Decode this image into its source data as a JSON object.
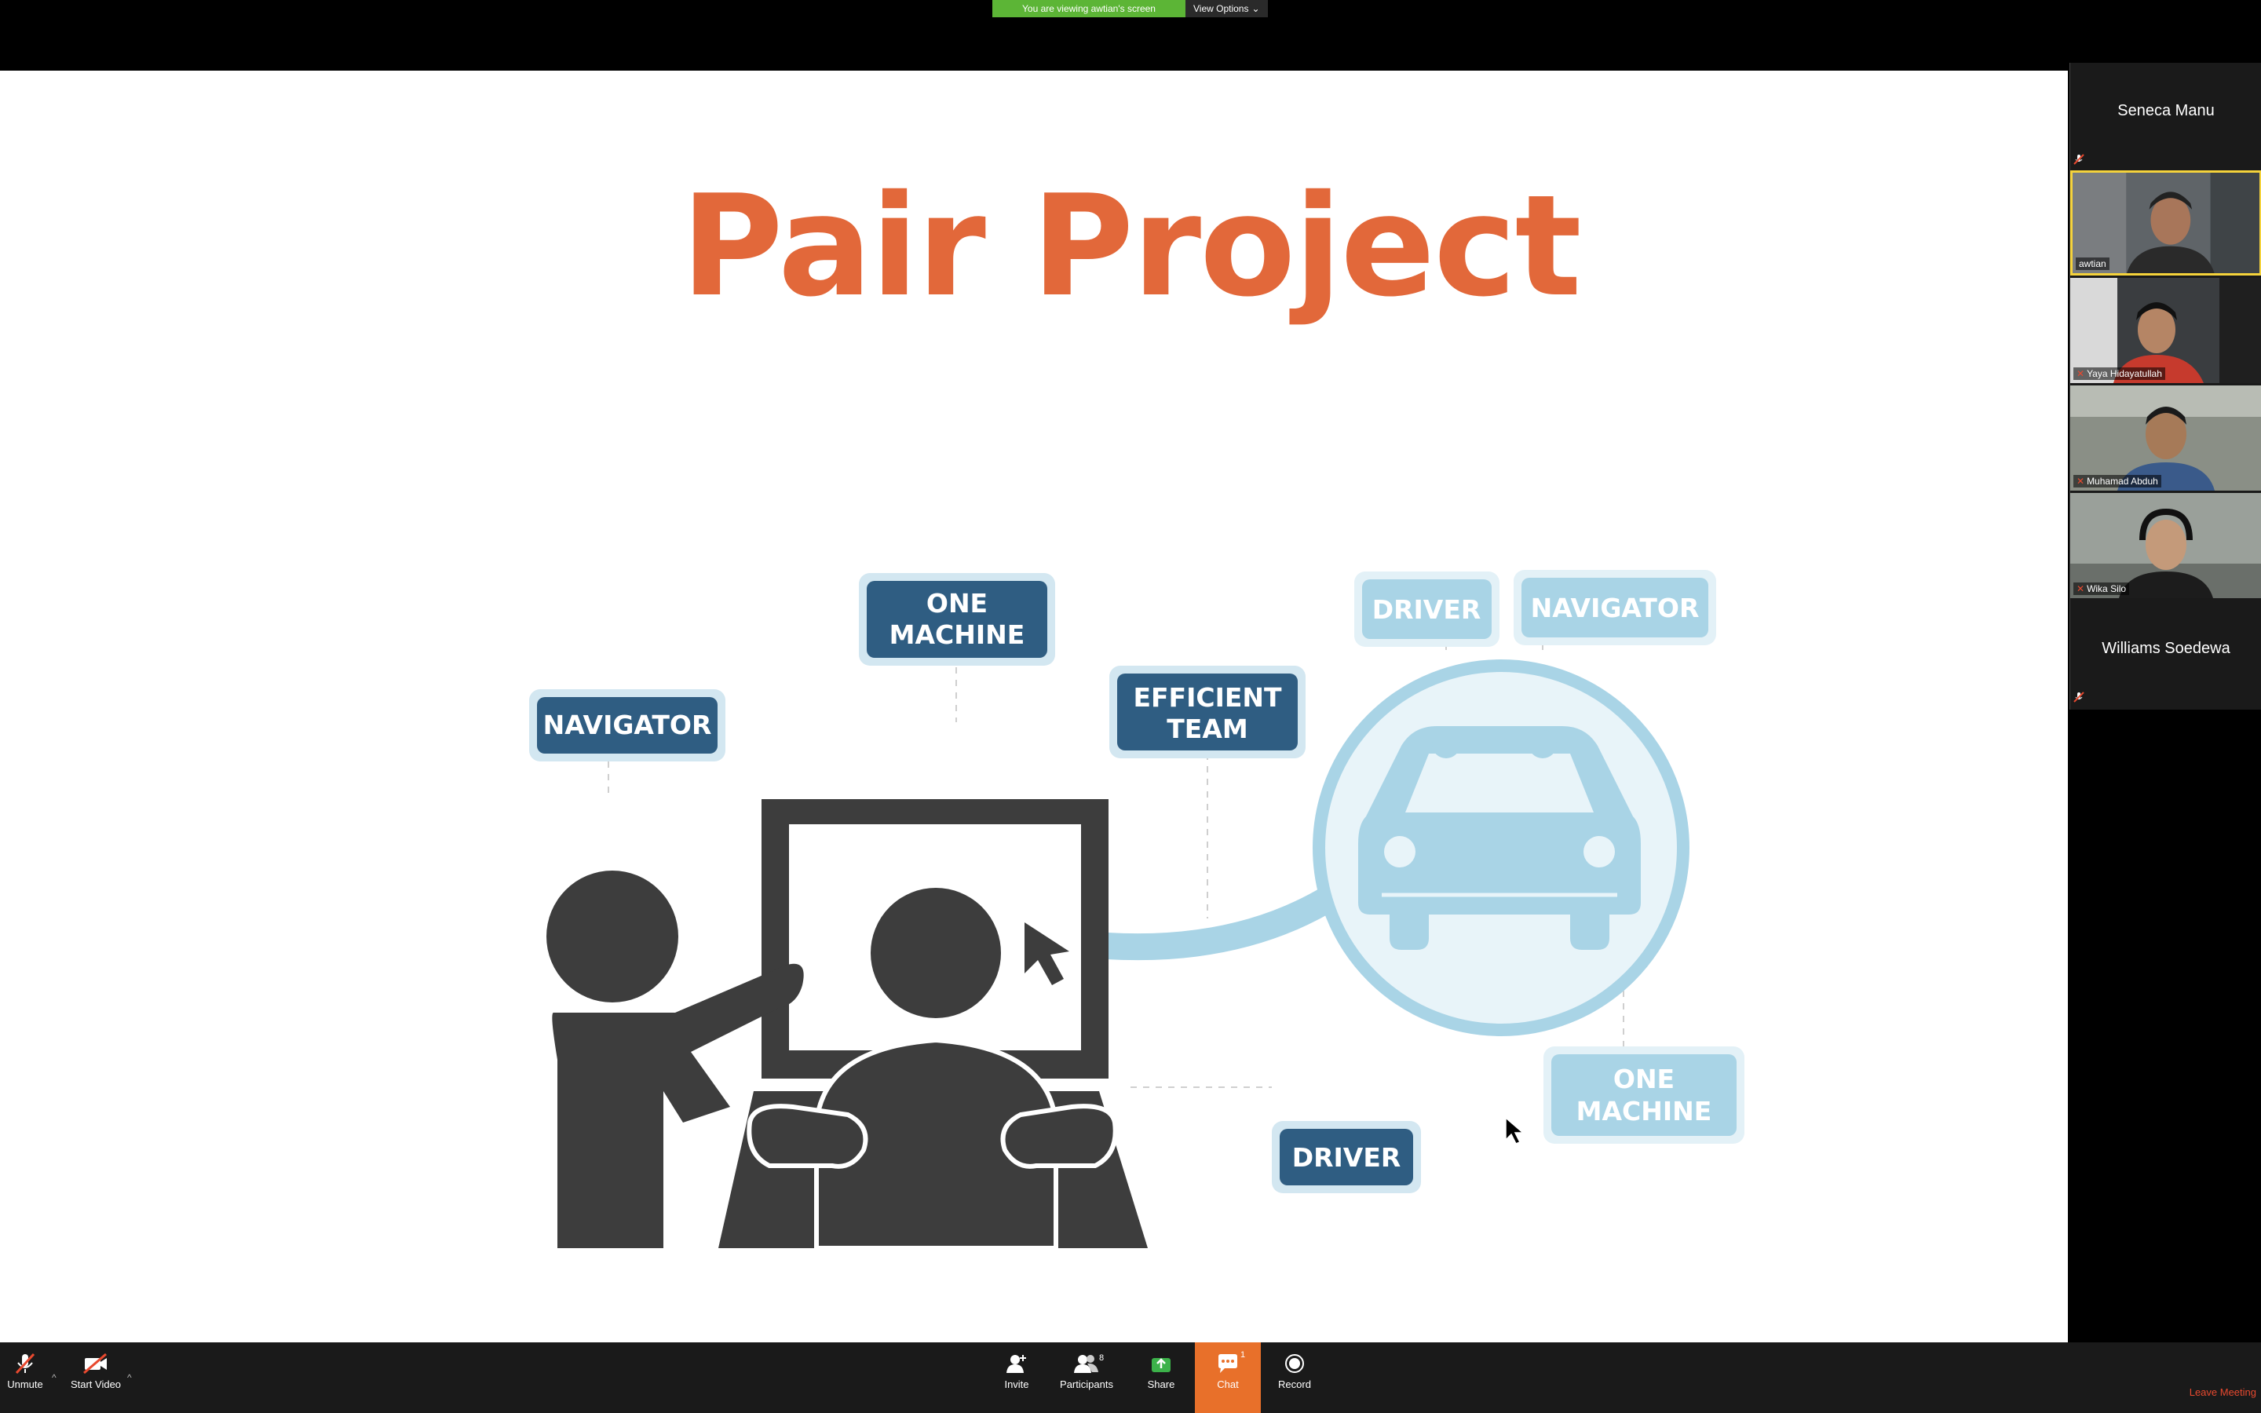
{
  "banner": {
    "viewing": "You are viewing awtian's screen",
    "options": "View Options"
  },
  "slide": {
    "title": "Pair Project",
    "labels": {
      "navigator_left": "NAVIGATOR",
      "one_machine_top_1": "ONE",
      "one_machine_top_2": "MACHINE",
      "efficient_1": "EFFICIENT",
      "efficient_2": "TEAM",
      "driver_bottom": "DRIVER",
      "driver_top": "DRIVER",
      "navigator_right": "NAVIGATOR",
      "one_machine_right_1": "ONE",
      "one_machine_right_2": "MACHINE"
    }
  },
  "participants": [
    {
      "name": "Seneca Manu",
      "video": false
    },
    {
      "name": "awtian",
      "video": true,
      "active": true
    },
    {
      "name": "Yaya Hidayatullah",
      "video": true
    },
    {
      "name": "Muhamad Abduh",
      "video": true
    },
    {
      "name": "Wika Silo",
      "video": true
    },
    {
      "name": "Williams Soedewa",
      "video": false
    }
  ],
  "toolbar": {
    "unmute": "Unmute",
    "start_video": "Start Video",
    "invite": "Invite",
    "participants": "Participants",
    "participants_count": "8",
    "share": "Share",
    "chat": "Chat",
    "chat_badge": "1",
    "record": "Record",
    "leave": "Leave Meeting"
  },
  "colors": {
    "title": "#e2683a",
    "dark_label": "#2f5d82",
    "light_label": "#a9d4e6",
    "chat_active": "#e8702a",
    "banner": "#5cb536",
    "leave": "#e8492f"
  }
}
